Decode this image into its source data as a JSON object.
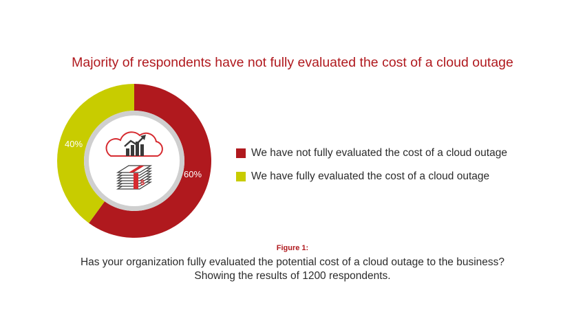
{
  "title": "Majority of respondents have not fully evaluated the cost of a cloud outage",
  "chart_data": {
    "type": "pie",
    "title": "Majority of respondents have not fully evaluated the cost of a cloud outage",
    "categories": [
      "We have not fully evaluated the cost of a cloud outage",
      "We have fully evaluated the cost of a cloud outage"
    ],
    "values": [
      60,
      40
    ],
    "labels": [
      "60%",
      "40%"
    ],
    "colors": [
      "#b0191e",
      "#c8cc00"
    ],
    "legend_position": "right"
  },
  "center_icons": [
    "cloud-chart-icon",
    "money-stack-icon"
  ],
  "figure_label": "Figure 1:",
  "caption": [
    "Has your organization fully evaluated the potential cost of a cloud outage to the business?",
    "Showing the results of 1200 respondents."
  ]
}
